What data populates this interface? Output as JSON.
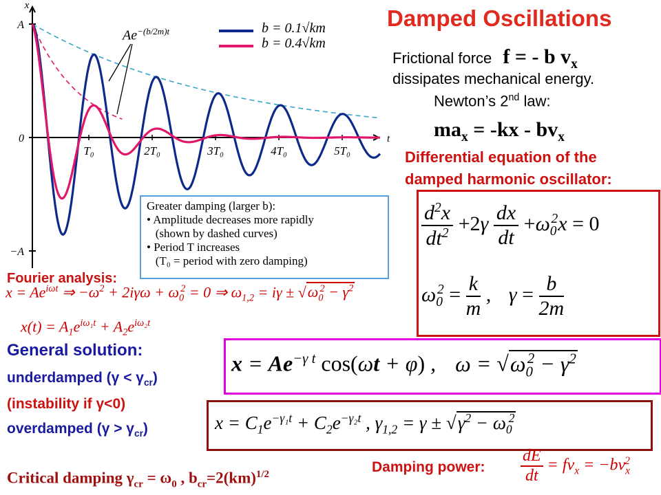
{
  "title": "Damped Oscillations",
  "frictional_force": {
    "label": "Frictional force",
    "formula": "f = - b v",
    "sub": "x"
  },
  "dissipates": "dissipates mechanical energy.",
  "newton": {
    "label": "Newton’s 2",
    "sup": "nd",
    "tail": " law:"
  },
  "ma_eq": {
    "lhs": "ma",
    "sub1": "x",
    "rhs": " = -kx - bv",
    "sub2": "x"
  },
  "diff_eq_heading": [
    "Differential equation of the",
    "damped harmonic oscillator:"
  ],
  "fourier_label": "Fourier analysis:",
  "general_solution": "General solution:",
  "underdamped": "underdamped (γ < γ",
  "instability": "(instability if γ<0)",
  "overdamped": "overdamped (γ > γ",
  "cr": "cr",
  "close_paren": ")",
  "critical": {
    "label": "Critical damping  γ",
    "rest": " = ω",
    "zero": "0",
    "tail": " , b",
    "cr": "cr",
    "eq": "=2(km)",
    "sup": "1/2"
  },
  "damping_power_label": "Damping power:",
  "info_box": [
    "Greater damping (larger b):",
    "• Amplitude decreases more rapidly",
    "   (shown by dashed curves)",
    "• Period T increases",
    "   (T₀ = period with zero damping)"
  ],
  "chart_data": {
    "type": "line",
    "xlabel": "t",
    "ylabel": "x",
    "y_ticks": [
      "A",
      "0",
      "−A"
    ],
    "x_ticks": [
      "T₀",
      "2T₀",
      "3T₀",
      "4T₀",
      "5T₀"
    ],
    "envelope_label": "Ae^−(b/2m)t",
    "series": [
      {
        "name": "b = 0.1√km",
        "color": "#0d2a8a",
        "b_over_sqrt_km": 0.1,
        "envelope_dashed": true,
        "envelope_color": "#3aa5c8"
      },
      {
        "name": "b = 0.4√km",
        "color": "#e0186a",
        "b_over_sqrt_km": 0.4,
        "envelope_dashed": true,
        "envelope_color": "#e0186a"
      }
    ],
    "x_range_periods": [
      0,
      5.6
    ],
    "y_range": [
      -1,
      1
    ]
  }
}
